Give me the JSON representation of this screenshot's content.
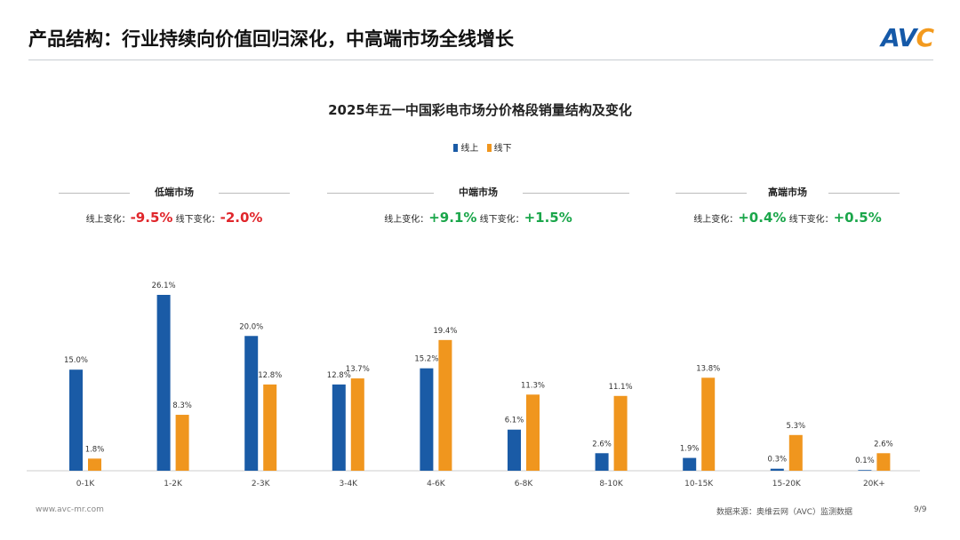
{
  "header": {
    "title": "产品结构：行业持续向价值回归深化，中高端市场全线增长",
    "logo": "AVC"
  },
  "chart_data": {
    "type": "bar",
    "title": "2025年五一中国彩电市场分价格段销量结构及变化",
    "categories": [
      "0-1K",
      "1-2K",
      "2-3K",
      "3-4K",
      "4-6K",
      "6-8K",
      "8-10K",
      "10-15K",
      "15-20K",
      "20K+"
    ],
    "series": [
      {
        "name": "线上",
        "color": "#1a5ba6",
        "values": [
          15.0,
          26.1,
          20.0,
          12.8,
          15.2,
          6.1,
          2.6,
          1.9,
          0.3,
          0.1
        ],
        "labels": [
          "15.0%",
          "26.1%",
          "20.0%",
          "12.8%",
          "15.2%",
          "6.1%",
          "2.6%",
          "1.9%",
          "0.3%",
          "0.1%"
        ]
      },
      {
        "name": "线下",
        "color": "#f0961e",
        "values": [
          1.8,
          8.3,
          12.8,
          13.7,
          19.4,
          11.3,
          11.1,
          13.8,
          5.3,
          2.6
        ],
        "labels": [
          "1.8%",
          "8.3%",
          "12.8%",
          "13.7%",
          "19.4%",
          "11.3%",
          "11.1%",
          "13.8%",
          "5.3%",
          "2.6%"
        ]
      }
    ],
    "ylabel": "",
    "xlabel": "",
    "ylim": [
      0,
      30
    ],
    "grid": false,
    "legend": "top-center"
  },
  "segments": [
    {
      "name": "低端市场",
      "online_label": "线上变化：",
      "online": "-9.5%",
      "offline_label": "线下变化：",
      "offline": "-2.0%",
      "color": "#e0262b"
    },
    {
      "name": "中端市场",
      "online_label": "线上变化：",
      "online": "+9.1%",
      "offline_label": "线下变化：",
      "offline": "+1.5%",
      "color": "#1aa64a"
    },
    {
      "name": "高端市场",
      "online_label": "线上变化：",
      "online": "+0.4%",
      "offline_label": "线下变化：",
      "offline": "+0.5%",
      "color": "#1aa64a"
    }
  ],
  "footer": {
    "url": "www.avc-mr.com",
    "source": "数据来源：奥维云网（AVC）监测数据",
    "page": "9/9"
  }
}
